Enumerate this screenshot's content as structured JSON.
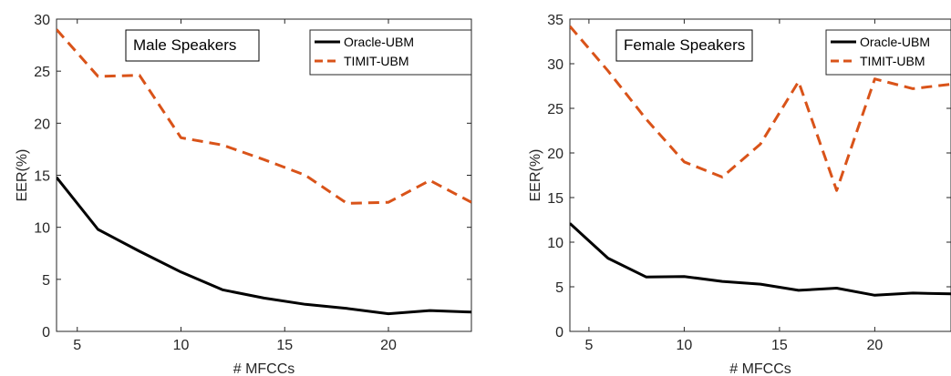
{
  "chart_data": [
    {
      "type": "line",
      "annotation": "Male Speakers",
      "xlabel": "# MFCCs",
      "ylabel": "EER(%)",
      "xlim": [
        4,
        24
      ],
      "ylim": [
        0,
        30
      ],
      "xticks": [
        5,
        10,
        15,
        20
      ],
      "yticks": [
        0,
        5,
        10,
        15,
        20,
        25,
        30
      ],
      "grid": false,
      "legend_position": "top-right",
      "x": [
        4,
        6,
        8,
        10,
        12,
        14,
        16,
        18,
        20,
        22,
        24
      ],
      "series": [
        {
          "name": "Oracle-UBM",
          "color": "#000000",
          "dash": "solid",
          "values": [
            14.8,
            9.8,
            7.7,
            5.7,
            4.0,
            3.2,
            2.6,
            2.2,
            1.7,
            2.0,
            1.85
          ]
        },
        {
          "name": "TIMIT-UBM",
          "color": "#d95319",
          "dash": "dashed",
          "values": [
            29.0,
            24.5,
            24.6,
            18.6,
            17.9,
            16.5,
            15.0,
            12.3,
            12.4,
            14.5,
            12.4
          ]
        }
      ]
    },
    {
      "type": "line",
      "annotation": "Female Speakers",
      "xlabel": "# MFCCs",
      "ylabel": "EER(%)",
      "xlim": [
        4,
        24
      ],
      "ylim": [
        0,
        35
      ],
      "xticks": [
        5,
        10,
        15,
        20
      ],
      "yticks": [
        0,
        5,
        10,
        15,
        20,
        25,
        30,
        35
      ],
      "grid": false,
      "legend_position": "top-right",
      "x": [
        4,
        6,
        8,
        10,
        12,
        14,
        16,
        18,
        20,
        22,
        24
      ],
      "series": [
        {
          "name": "Oracle-UBM",
          "color": "#000000",
          "dash": "solid",
          "values": [
            12.1,
            8.2,
            6.1,
            6.15,
            5.6,
            5.3,
            4.6,
            4.85,
            4.05,
            4.3,
            4.2
          ]
        },
        {
          "name": "TIMIT-UBM",
          "color": "#d95319",
          "dash": "dashed",
          "values": [
            34.2,
            29.2,
            23.8,
            19.0,
            17.3,
            21.0,
            28.0,
            15.8,
            28.3,
            27.2,
            27.7
          ]
        }
      ]
    }
  ]
}
